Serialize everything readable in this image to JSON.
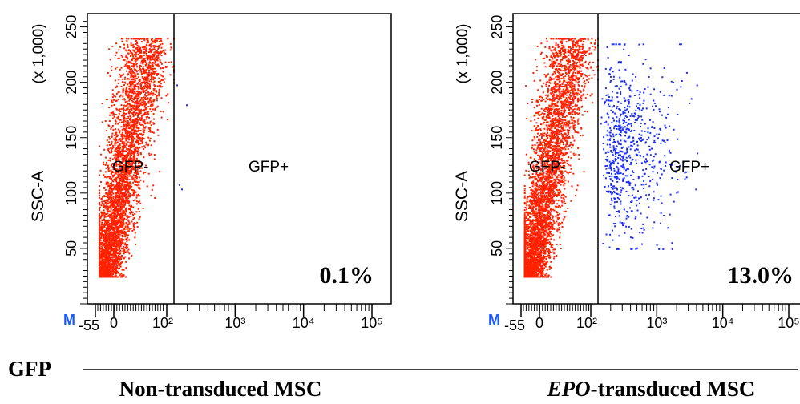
{
  "figure": {
    "x_axis_name": "GFP",
    "colors": {
      "negative": "#ff2200",
      "positive": "#1a2cff",
      "axis": "#000000",
      "marker": "#1a5cff"
    }
  },
  "chart_data": [
    {
      "type": "scatter",
      "caption": "Non-transduced MSC",
      "caption_italic_prefix": "",
      "ylabel": "SSC-A",
      "y_multiplier": "(x 1,000)",
      "x_scale": "biexponential",
      "x_tick_labels": [
        "-55",
        "0",
        "10²",
        "10³",
        "10⁴",
        "10⁵"
      ],
      "y_tick_labels": [
        "50",
        "100",
        "150",
        "200",
        "250"
      ],
      "ylim": [
        0,
        262
      ],
      "gate_threshold": "10²",
      "gate_labels": {
        "left": "GFP-",
        "right": "GFP+"
      },
      "percent_positive": "0.1%",
      "axis_marker": "M",
      "clusters": [
        {
          "population": "GFP-",
          "color": "negative",
          "x_range": [
            "-55",
            "10²"
          ],
          "y_range": [
            25,
            240
          ],
          "density": "high"
        },
        {
          "population": "GFP+",
          "color": "positive",
          "events": "very few",
          "y_range": [
            100,
            200
          ]
        }
      ]
    },
    {
      "type": "scatter",
      "caption": "-transduced MSC",
      "caption_italic_prefix": "EPO",
      "ylabel": "SSC-A",
      "y_multiplier": "(x 1,000)",
      "x_scale": "biexponential",
      "x_tick_labels": [
        "-55",
        "0",
        "10²",
        "10³",
        "10⁴",
        "10⁵"
      ],
      "y_tick_labels": [
        "50",
        "100",
        "150",
        "200",
        "250"
      ],
      "ylim": [
        0,
        262
      ],
      "gate_threshold": "10²",
      "gate_labels": {
        "left": "GFP-",
        "right": "GFP+"
      },
      "percent_positive": "13.0%",
      "axis_marker": "M",
      "clusters": [
        {
          "population": "GFP-",
          "color": "negative",
          "x_range": [
            "-55",
            "10²"
          ],
          "y_range": [
            25,
            240
          ],
          "density": "high"
        },
        {
          "population": "GFP+",
          "color": "positive",
          "x_range": [
            "10²",
            "10³"
          ],
          "y_range": [
            50,
            235
          ],
          "density": "medium"
        }
      ]
    }
  ]
}
